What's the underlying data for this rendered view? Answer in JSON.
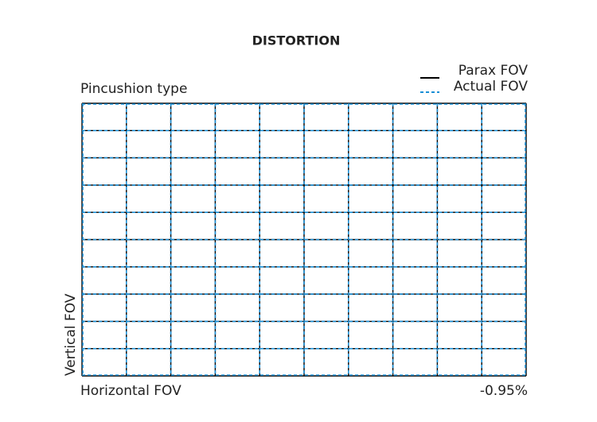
{
  "chart_data": {
    "type": "distortion-grid",
    "title": "DISTORTION",
    "subtitle": "Pincushion type",
    "xlabel": "Horizontal FOV",
    "ylabel": "Vertical FOV",
    "annotation": "-0.95%",
    "series": [
      {
        "name": "Parax FOV",
        "color": "#000000",
        "style": "solid"
      },
      {
        "name": "Actual FOV",
        "color": "#1a8fd6",
        "style": "dashed"
      }
    ]
  }
}
